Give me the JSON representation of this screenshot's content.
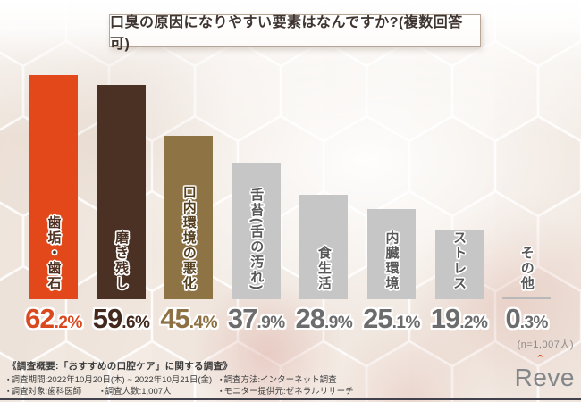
{
  "title": "口臭の原因になりやすい要素はなんですか?(複数回答可)",
  "chart_data": {
    "type": "bar",
    "title": "口臭の原因になりやすい要素はなんですか?(複数回答可)",
    "categories": [
      "歯垢・歯石",
      "磨き残し",
      "口内環境の悪化",
      "舌苔(舌の汚れ)",
      "食生活",
      "内臓環境",
      "ストレス",
      "その他"
    ],
    "values": [
      62.2,
      59.6,
      45.4,
      37.9,
      28.9,
      25.1,
      19.2,
      0.3
    ],
    "unit": "%",
    "ylim": [
      0,
      65
    ],
    "grid": false,
    "legend": false,
    "value_label_position": "below-bars",
    "bar_colors": [
      "#e2481a",
      "#4a3124",
      "#8e7344",
      "#c6c6c6",
      "#c6c6c6",
      "#c6c6c6",
      "#c6c6c6",
      "#b9b9b9"
    ],
    "value_colors": [
      "#d9481e",
      "#43291d",
      "#8d7142",
      "#6c6c6c",
      "#6c6c6c",
      "#6c6c6c",
      "#6c6c6c",
      "#6c6c6c"
    ],
    "label_colors": [
      "#4e3120",
      "#4a3124",
      "#54401f",
      "#575757",
      "#575757",
      "#575757",
      "#575757",
      "#575757"
    ],
    "n_label": "(n=1,007人)"
  },
  "footer": {
    "heading": "《調査概要:「おすすめの口腔ケア」に関する調査》",
    "bullet": "▪",
    "row1_left": "調査期間:2022年10月20日(木) ~ 2022年10月21日(金)",
    "row1_right": "調査方法:インターネット調査",
    "row2_left_a": "調査対象:歯科医師",
    "row2_left_b": "調査人数:1,007人",
    "row2_right": "モニター提供元:ゼネラルリサーチ"
  },
  "logo": {
    "prefix": "R",
    "accent_letter": "e",
    "suffix": "ve",
    "hat": "ˆ",
    "hat_color": "#e2481a"
  }
}
